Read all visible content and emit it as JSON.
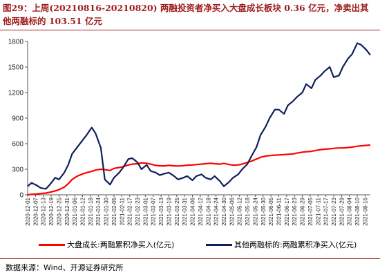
{
  "title": "图29：上周(20210816-20210820) 两融投资者净买入大盘成长板块 0.36 亿元，净卖出其他两融标的 103.51 亿元",
  "source": "数据来源：Wind、开源证券研究所",
  "chart_data": {
    "type": "line",
    "title": "图29：上周(20210816-20210820) 两融投资者净买入大盘成长板块 0.36 亿元，净卖出其他两融标的 103.51 亿元",
    "xlabel": "",
    "ylabel": "",
    "ylim": [
      0,
      1800
    ],
    "yticks": [
      0,
      300,
      600,
      900,
      1200,
      1500,
      1800
    ],
    "grid": false,
    "legend_position": "bottom",
    "x_tick_labels": [
      "2020-12-01",
      "2020-12-07",
      "2020-12-13",
      "2020-12-19",
      "2020-12-25",
      "2020-12-31",
      "2021-01-06",
      "2021-01-12",
      "2021-01-18",
      "2021-01-24",
      "2021-01-30",
      "2021-02-05",
      "2021-02-11",
      "2021-02-17",
      "2021-02-23",
      "2021-03-01",
      "2021-03-07",
      "2021-03-13",
      "2021-03-19",
      "2021-03-25",
      "2021-03-31",
      "2021-04-06",
      "2021-04-12",
      "2021-04-18",
      "2021-04-24",
      "2021-04-30",
      "2021-05-06",
      "2021-05-12",
      "2021-05-18",
      "2021-05-24",
      "2021-05-30",
      "2021-06-05",
      "2021-06-11",
      "2021-06-17",
      "2021-06-23",
      "2021-06-29",
      "2021-07-05",
      "2021-07-11",
      "2021-07-17",
      "2021-07-23",
      "2021-07-29",
      "2021-08-04",
      "2021-08-10",
      "2021-08-16"
    ],
    "series": [
      {
        "name": "大盘成长:两融累积净买入(亿元)",
        "color": "#ff0000",
        "x": [
          "2020-12-01",
          "2020-12-04",
          "2020-12-08",
          "2020-12-11",
          "2020-12-15",
          "2020-12-18",
          "2020-12-22",
          "2020-12-25",
          "2020-12-29",
          "2021-01-01",
          "2021-01-04",
          "2021-01-08",
          "2021-01-12",
          "2021-01-15",
          "2021-01-19",
          "2021-01-22",
          "2021-01-26",
          "2021-01-29",
          "2021-02-02",
          "2021-02-05",
          "2021-02-09",
          "2021-02-12",
          "2021-02-16",
          "2021-02-19",
          "2021-02-23",
          "2021-02-26",
          "2021-03-02",
          "2021-03-05",
          "2021-03-09",
          "2021-03-12",
          "2021-03-16",
          "2021-03-19",
          "2021-03-23",
          "2021-03-26",
          "2021-03-30",
          "2021-04-02",
          "2021-04-06",
          "2021-04-09",
          "2021-04-13",
          "2021-04-16",
          "2021-04-20",
          "2021-04-23",
          "2021-04-27",
          "2021-04-30",
          "2021-05-04",
          "2021-05-07",
          "2021-05-11",
          "2021-05-14",
          "2021-05-18",
          "2021-05-21",
          "2021-05-25",
          "2021-05-28",
          "2021-06-01",
          "2021-06-04",
          "2021-06-08",
          "2021-06-11",
          "2021-06-15",
          "2021-06-18",
          "2021-06-22",
          "2021-06-25",
          "2021-06-29",
          "2021-07-02",
          "2021-07-06",
          "2021-07-09",
          "2021-07-13",
          "2021-07-16",
          "2021-07-20",
          "2021-07-23",
          "2021-07-27",
          "2021-07-30",
          "2021-08-03",
          "2021-08-06",
          "2021-08-10",
          "2021-08-13",
          "2021-08-17",
          "2021-08-20"
        ],
        "values": [
          0,
          5,
          10,
          15,
          20,
          30,
          45,
          60,
          90,
          130,
          180,
          220,
          245,
          260,
          275,
          290,
          300,
          295,
          285,
          310,
          320,
          330,
          350,
          360,
          365,
          375,
          370,
          360,
          345,
          340,
          340,
          345,
          340,
          338,
          342,
          348,
          350,
          355,
          360,
          365,
          370,
          365,
          360,
          368,
          355,
          348,
          350,
          360,
          380,
          395,
          420,
          440,
          455,
          460,
          465,
          468,
          472,
          475,
          480,
          490,
          500,
          505,
          510,
          520,
          530,
          535,
          540,
          545,
          550,
          550,
          555,
          560,
          570,
          575,
          580,
          585
        ]
      },
      {
        "name": "其他两融标的:两融累积净买入(亿元)",
        "color": "#0d1f5c",
        "x": [
          "2020-12-01",
          "2020-12-04",
          "2020-12-08",
          "2020-12-11",
          "2020-12-15",
          "2020-12-18",
          "2020-12-22",
          "2020-12-25",
          "2020-12-29",
          "2021-01-01",
          "2021-01-04",
          "2021-01-08",
          "2021-01-12",
          "2021-01-15",
          "2021-01-19",
          "2021-01-22",
          "2021-01-26",
          "2021-01-29",
          "2021-02-02",
          "2021-02-05",
          "2021-02-09",
          "2021-02-12",
          "2021-02-16",
          "2021-02-19",
          "2021-02-23",
          "2021-02-26",
          "2021-03-02",
          "2021-03-05",
          "2021-03-09",
          "2021-03-12",
          "2021-03-16",
          "2021-03-19",
          "2021-03-23",
          "2021-03-26",
          "2021-03-30",
          "2021-04-02",
          "2021-04-06",
          "2021-04-09",
          "2021-04-13",
          "2021-04-16",
          "2021-04-20",
          "2021-04-23",
          "2021-04-27",
          "2021-04-30",
          "2021-05-04",
          "2021-05-07",
          "2021-05-11",
          "2021-05-14",
          "2021-05-18",
          "2021-05-21",
          "2021-05-25",
          "2021-05-28",
          "2021-06-01",
          "2021-06-04",
          "2021-06-08",
          "2021-06-11",
          "2021-06-15",
          "2021-06-18",
          "2021-06-22",
          "2021-06-25",
          "2021-06-29",
          "2021-07-02",
          "2021-07-06",
          "2021-07-09",
          "2021-07-13",
          "2021-07-16",
          "2021-07-20",
          "2021-07-23",
          "2021-07-27",
          "2021-07-30",
          "2021-08-03",
          "2021-08-06",
          "2021-08-10",
          "2021-08-13",
          "2021-08-17",
          "2021-08-20"
        ],
        "values": [
          100,
          140,
          110,
          80,
          70,
          120,
          200,
          180,
          260,
          350,
          480,
          560,
          640,
          700,
          790,
          720,
          550,
          180,
          120,
          200,
          260,
          320,
          420,
          430,
          380,
          300,
          350,
          280,
          260,
          230,
          250,
          260,
          220,
          180,
          200,
          220,
          170,
          220,
          240,
          200,
          180,
          220,
          160,
          100,
          150,
          200,
          240,
          300,
          360,
          450,
          560,
          700,
          800,
          900,
          1000,
          1000,
          950,
          1050,
          1100,
          1150,
          1200,
          1300,
          1250,
          1350,
          1400,
          1450,
          1500,
          1380,
          1400,
          1500,
          1600,
          1650,
          1780,
          1760,
          1700,
          1640
        ]
      }
    ]
  }
}
